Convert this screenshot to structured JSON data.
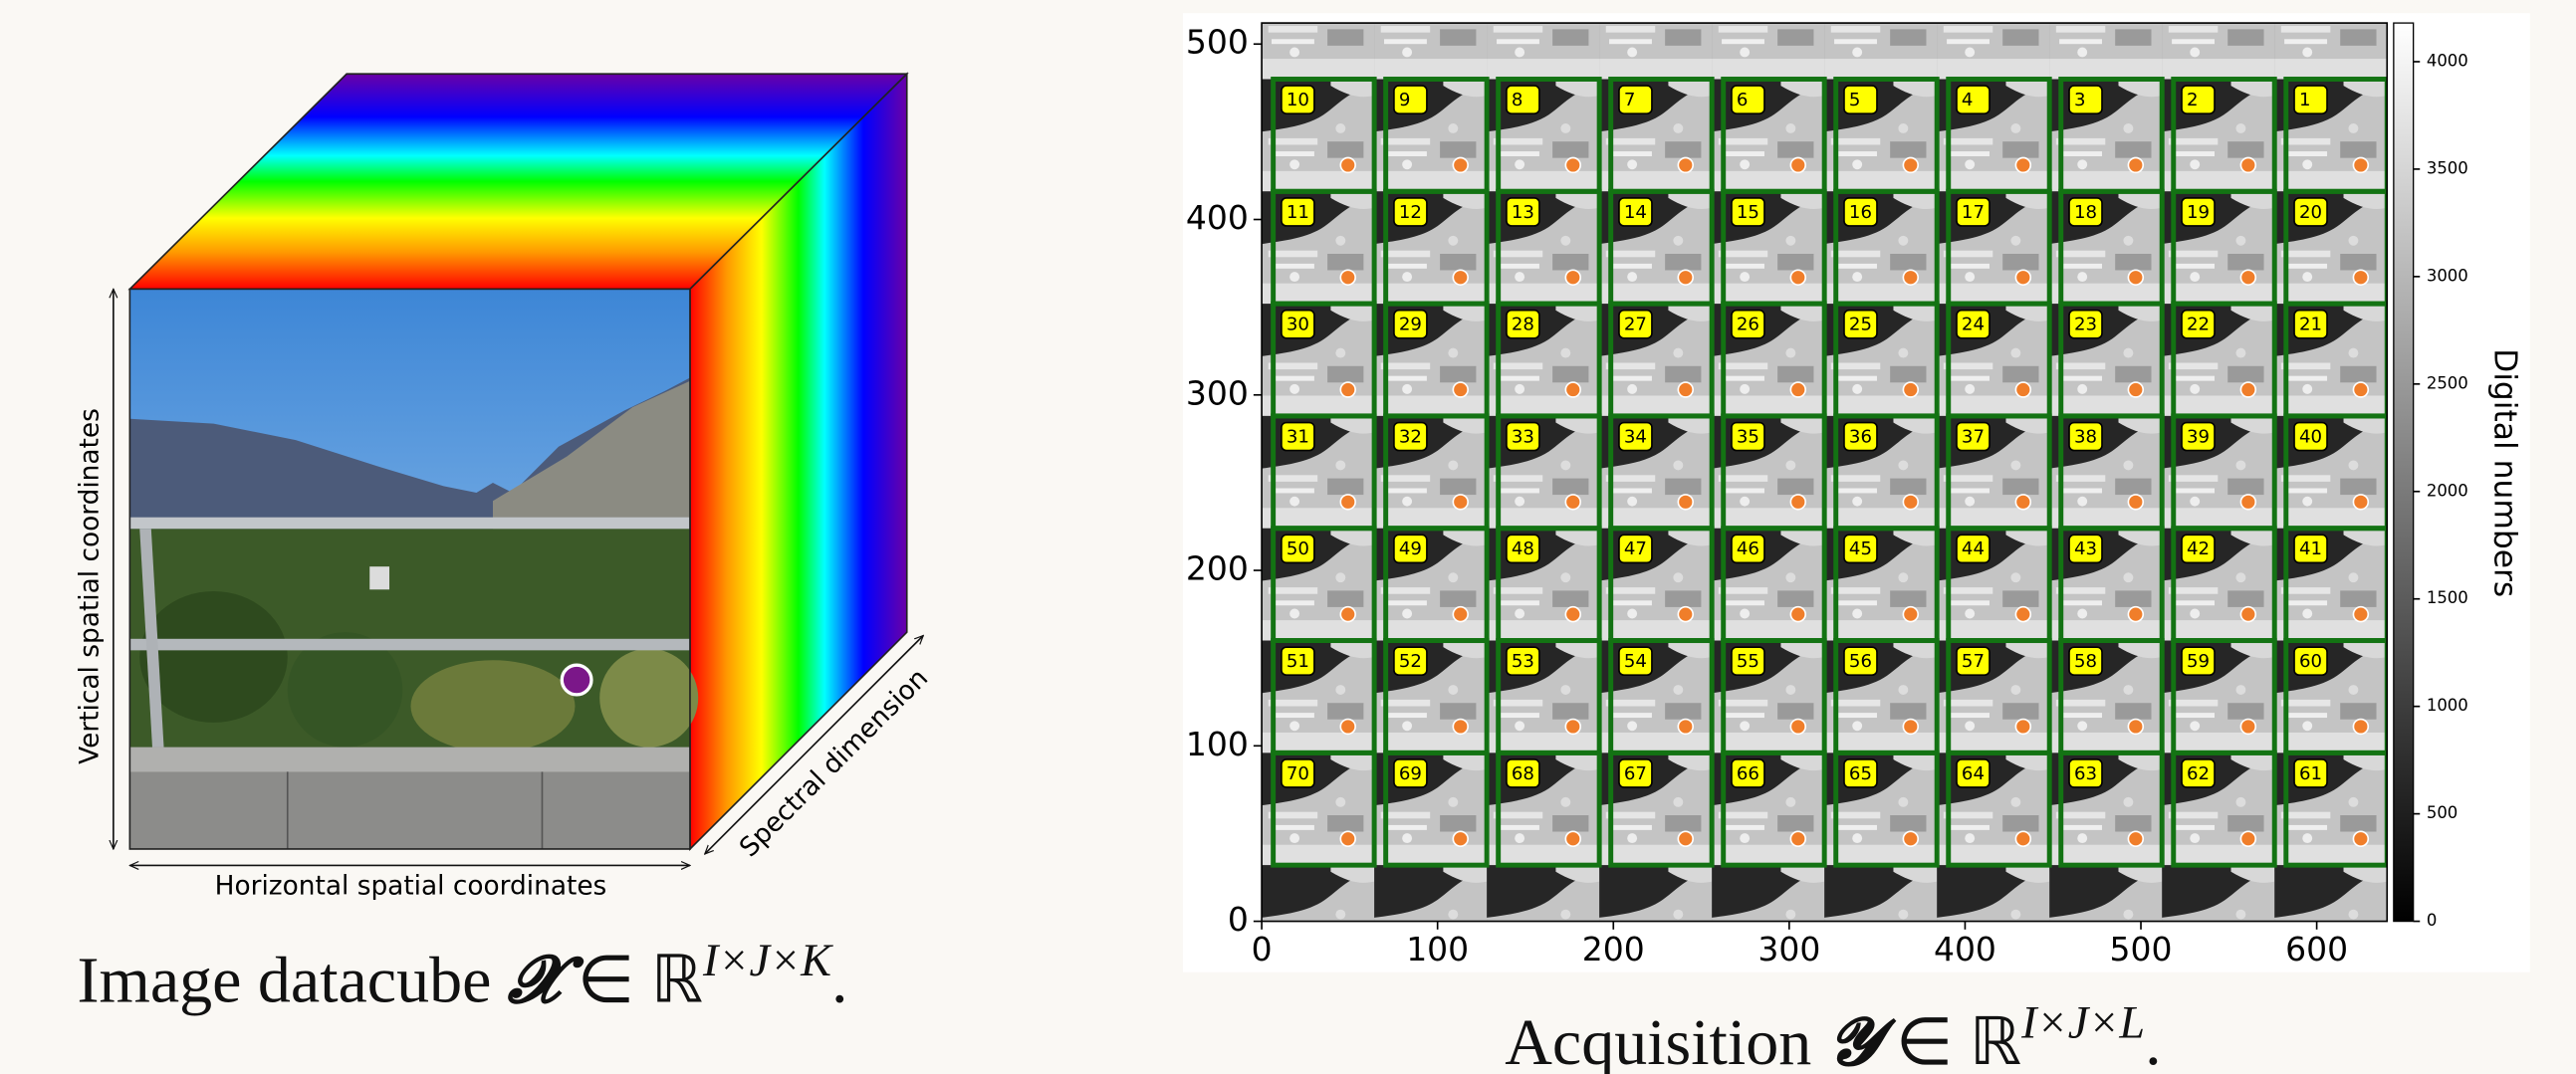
{
  "datacube": {
    "axes": {
      "vertical": "Vertical spatial coordinates",
      "horizontal": "Horizontal spatial coordinates",
      "spectral": "Spectral dimension"
    },
    "caption": {
      "text": "Image datacube",
      "symbol": "𝓧",
      "relation": "∈",
      "space": "ℝ",
      "exponent": "I×J×K",
      "end": "."
    }
  },
  "acquisition": {
    "xlim": [
      0,
      640
    ],
    "ylim": [
      0,
      512
    ],
    "xticks": [
      0,
      100,
      200,
      300,
      400,
      500,
      600
    ],
    "yticks": [
      0,
      100,
      200,
      300,
      400,
      500
    ],
    "tiles": [
      [
        10,
        9,
        8,
        7,
        6,
        5,
        4,
        3,
        2,
        1
      ],
      [
        11,
        12,
        13,
        14,
        15,
        16,
        17,
        18,
        19,
        20
      ],
      [
        30,
        29,
        28,
        27,
        26,
        25,
        24,
        23,
        22,
        21
      ],
      [
        31,
        32,
        33,
        34,
        35,
        36,
        37,
        38,
        39,
        40
      ],
      [
        50,
        49,
        48,
        47,
        46,
        45,
        44,
        43,
        42,
        41
      ],
      [
        51,
        52,
        53,
        54,
        55,
        56,
        57,
        58,
        59,
        60
      ],
      [
        70,
        69,
        68,
        67,
        66,
        65,
        64,
        63,
        62,
        61
      ]
    ],
    "colorbar": {
      "label": "Digital numbers",
      "lim": [
        0,
        4180
      ],
      "ticks": [
        0,
        500,
        1000,
        1500,
        2000,
        2500,
        3000,
        3500,
        4000
      ]
    },
    "caption": {
      "text": "Acquisition",
      "symbol": "𝓨",
      "relation": "∈",
      "space": "ℝ",
      "exponent": "I×J×L",
      "end": "."
    }
  }
}
